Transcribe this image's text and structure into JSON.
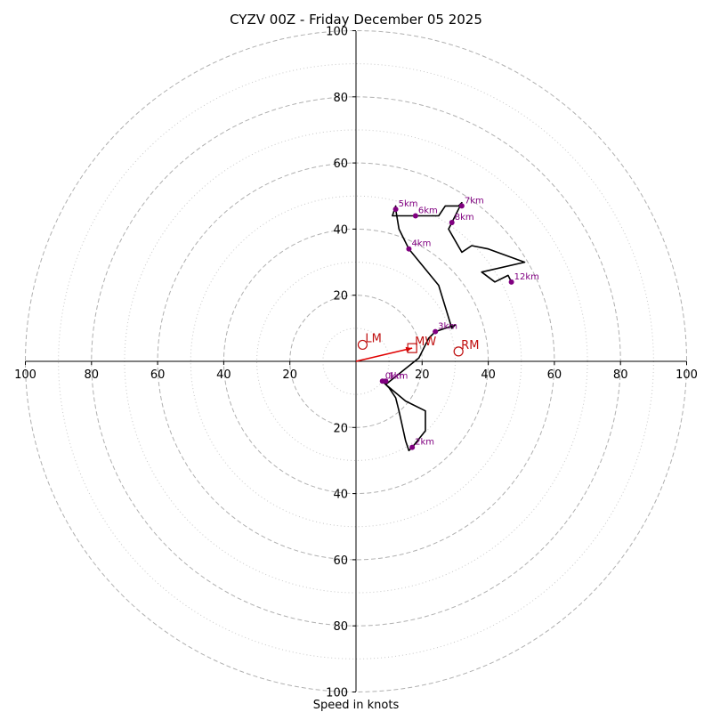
{
  "chart_data": {
    "type": "hodograph",
    "title": "CYZV 00Z - Friday December 05 2025",
    "xlabel": "Speed in knots",
    "ylabel": "",
    "xlim": [
      -100,
      100
    ],
    "ylim": [
      -100,
      100
    ],
    "rings": {
      "major": [
        20,
        40,
        60,
        80,
        100
      ],
      "minor": [
        10,
        30,
        50,
        70,
        90
      ]
    },
    "x_tick_labels": [
      "100",
      "80",
      "60",
      "40",
      "20",
      "20",
      "40",
      "60",
      "80",
      "100"
    ],
    "y_tick_labels_top": [
      "20",
      "40",
      "60",
      "80",
      "100"
    ],
    "y_tick_labels_bottom": [
      "20",
      "40",
      "60",
      "80",
      "100"
    ],
    "hodograph": {
      "color": "#000000",
      "points": [
        [
          8,
          -6
        ],
        [
          9,
          -7
        ],
        [
          10,
          -8
        ],
        [
          12,
          -11
        ],
        [
          13,
          -15
        ],
        [
          15,
          -24
        ],
        [
          16,
          -27
        ],
        [
          17,
          -26
        ],
        [
          21,
          -21
        ],
        [
          21,
          -15
        ],
        [
          15,
          -12
        ],
        [
          9,
          -7
        ],
        [
          19,
          1
        ],
        [
          22,
          7
        ],
        [
          24,
          9
        ],
        [
          30,
          11
        ],
        [
          29,
          10
        ],
        [
          25,
          23
        ],
        [
          16,
          34
        ],
        [
          13,
          40
        ],
        [
          12,
          46
        ],
        [
          12,
          47
        ],
        [
          11,
          44
        ],
        [
          14,
          44
        ],
        [
          18,
          44
        ],
        [
          25,
          44
        ],
        [
          27,
          47
        ],
        [
          31,
          47
        ],
        [
          32,
          48
        ],
        [
          29,
          42
        ],
        [
          28,
          40
        ],
        [
          32,
          33
        ],
        [
          35,
          35
        ],
        [
          40,
          34
        ],
        [
          51,
          30
        ],
        [
          38,
          27
        ],
        [
          42,
          24
        ],
        [
          46,
          26
        ],
        [
          47,
          24
        ]
      ]
    },
    "height_markers": [
      {
        "label": "0km",
        "u": 8,
        "v": -6
      },
      {
        "label": "1km",
        "u": 9,
        "v": -6
      },
      {
        "label": "2km",
        "u": 17,
        "v": -26
      },
      {
        "label": "3km",
        "u": 24,
        "v": 9
      },
      {
        "label": "4km",
        "u": 16,
        "v": 34
      },
      {
        "label": "5km",
        "u": 12,
        "v": 46
      },
      {
        "label": "6km",
        "u": 18,
        "v": 44
      },
      {
        "label": "7km",
        "u": 32,
        "v": 47
      },
      {
        "label": "8km",
        "u": 29,
        "v": 42
      },
      {
        "label": "12km",
        "u": 47,
        "v": 24
      }
    ],
    "storm_motion": [
      {
        "label": "LM",
        "u": 2,
        "v": 5,
        "marker": "circle"
      },
      {
        "label": "RM",
        "u": 31,
        "v": 3,
        "marker": "circle"
      },
      {
        "label": "MW",
        "u": 17,
        "v": 4,
        "marker": "square"
      }
    ],
    "mean_wind_vector": {
      "u": 17,
      "v": 4,
      "color": "#e00000"
    },
    "colors": {
      "hodograph": "#000000",
      "height_marker": "#800080",
      "storm_motion": "#c01010",
      "ring_major": "#b0b0b0",
      "ring_minor": "#c8c8c8",
      "axis": "#000000"
    }
  }
}
